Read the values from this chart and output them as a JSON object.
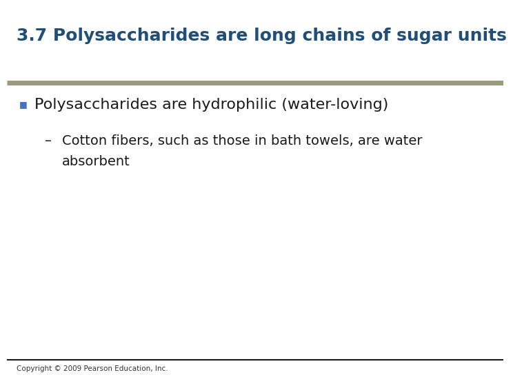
{
  "title": "3.7 Polysaccharides are long chains of sugar units",
  "title_color": "#1F4E79",
  "title_fontsize": 18,
  "bg_color": "#FFFFFF",
  "separator_color": "#9B9B7A",
  "bullet_text": "Polysaccharides are hydrophilic (water-loving)",
  "bullet_color": "#1A1A1A",
  "bullet_marker_color": "#4472C4",
  "bullet_fontsize": 16,
  "sub_bullet_text_line1": "Cotton fibers, such as those in bath towels, are water",
  "sub_bullet_text_line2": "absorbent",
  "sub_bullet_fontsize": 14,
  "sub_bullet_color": "#1A1A1A",
  "copyright_text": "Copyright © 2009 Pearson Education, Inc.",
  "copyright_fontsize": 7.5,
  "copyright_color": "#333333",
  "bottom_line_color": "#1A1A1A"
}
